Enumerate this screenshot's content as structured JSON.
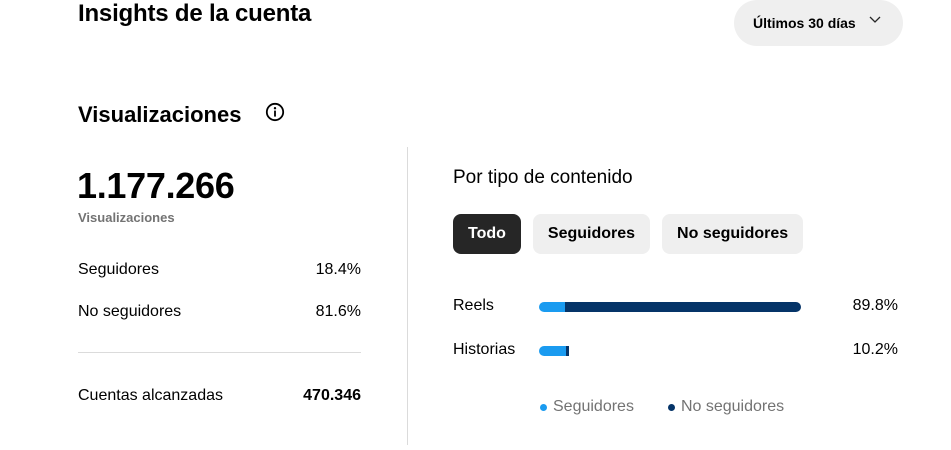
{
  "header": {
    "title": "Insights de la cuenta",
    "range_label": "Últimos 30 días"
  },
  "views": {
    "section_title": "Visualizaciones",
    "total": "1.177.266",
    "total_caption": "Visualizaciones",
    "followers_label": "Seguidores",
    "followers_value": "18.4%",
    "non_followers_label": "No seguidores",
    "non_followers_value": "81.6%",
    "accounts_label": "Cuentas alcanzadas",
    "accounts_value": "470.346"
  },
  "content_type": {
    "title": "Por tipo de contenido",
    "tabs": [
      {
        "label": "Todo",
        "active": true
      },
      {
        "label": "Seguidores",
        "active": false
      },
      {
        "label": "No seguidores",
        "active": false
      }
    ],
    "rows": [
      {
        "label": "Reels",
        "percent": "89.8%",
        "share": 0.898,
        "follower_fraction": 0.1
      },
      {
        "label": "Historias",
        "percent": "10.2%",
        "share": 0.102,
        "follower_fraction": 0.89
      }
    ],
    "legend": {
      "followers": "Seguidores",
      "non_followers": "No seguidores"
    }
  },
  "colors": {
    "followers": "#1a9bf0",
    "non_followers": "#053468"
  }
}
